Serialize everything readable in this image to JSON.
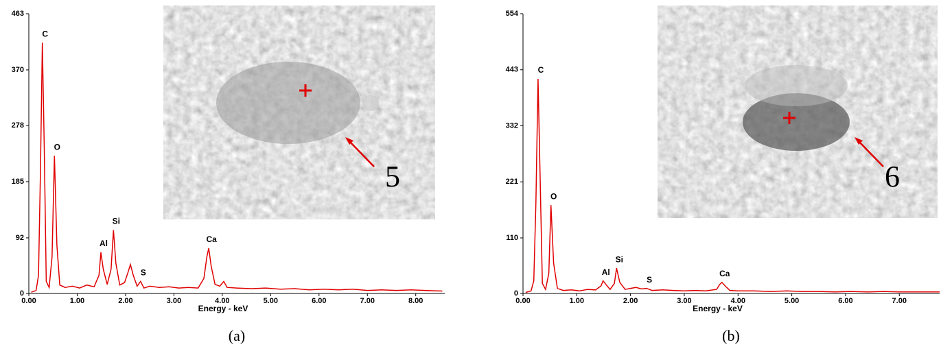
{
  "chart_data": [
    {
      "type": "line",
      "color": "#e00000",
      "x": [
        0.05,
        0.15,
        0.2,
        0.24,
        0.28,
        0.32,
        0.36,
        0.42,
        0.48,
        0.53,
        0.58,
        0.64,
        0.75,
        0.9,
        1.05,
        1.2,
        1.35,
        1.45,
        1.49,
        1.54,
        1.62,
        1.7,
        1.75,
        1.8,
        1.88,
        1.98,
        2.05,
        2.1,
        2.16,
        2.24,
        2.31,
        2.38,
        2.5,
        2.7,
        2.9,
        3.1,
        3.3,
        3.5,
        3.62,
        3.68,
        3.72,
        3.77,
        3.85,
        3.95,
        4.03,
        4.1,
        4.3,
        4.6,
        4.9,
        5.2,
        5.5,
        5.8,
        6.1,
        6.4,
        6.7,
        7.0,
        7.3,
        7.6,
        7.9,
        8.2,
        8.55
      ],
      "values": [
        2,
        5,
        30,
        200,
        415,
        240,
        20,
        10,
        60,
        228,
        80,
        14,
        10,
        12,
        9,
        14,
        11,
        30,
        68,
        40,
        15,
        40,
        105,
        50,
        14,
        18,
        35,
        48,
        30,
        12,
        20,
        9,
        12,
        10,
        11,
        9,
        10,
        9,
        25,
        60,
        75,
        45,
        15,
        12,
        20,
        10,
        9,
        8,
        9,
        7,
        8,
        6,
        7,
        6,
        7,
        5,
        6,
        5,
        6,
        5,
        4
      ],
      "xlim": [
        0,
        8.6
      ],
      "ylim": [
        0,
        463
      ],
      "xticks": [
        {
          "value": 0,
          "label": "0.00"
        },
        {
          "value": 1,
          "label": "1.00"
        },
        {
          "value": 2,
          "label": "2.00"
        },
        {
          "value": 3,
          "label": "3.00"
        },
        {
          "value": 4,
          "label": "4.00"
        },
        {
          "value": 5,
          "label": "5.00"
        },
        {
          "value": 6,
          "label": "6.00"
        },
        {
          "value": 7,
          "label": "7.00"
        },
        {
          "value": 8,
          "label": "8.00"
        }
      ],
      "yticks": [
        0,
        92,
        185,
        278,
        370,
        463
      ],
      "x_label": "Energy - keV",
      "annotations": [
        {
          "text": "C",
          "x": 0.28
        },
        {
          "text": "O",
          "x": 0.53
        },
        {
          "text": "Al",
          "x": 1.49
        },
        {
          "text": "Si",
          "x": 1.75
        },
        {
          "text": "S",
          "x": 2.31
        },
        {
          "text": "Ca",
          "x": 3.72
        }
      ],
      "inset_label": "5",
      "caption": "(a)"
    },
    {
      "type": "line",
      "color": "#e00000",
      "x": [
        0.05,
        0.15,
        0.2,
        0.24,
        0.28,
        0.32,
        0.36,
        0.42,
        0.48,
        0.52,
        0.57,
        0.64,
        0.75,
        0.9,
        1.05,
        1.2,
        1.35,
        1.45,
        1.49,
        1.54,
        1.62,
        1.7,
        1.74,
        1.8,
        1.9,
        2.0,
        2.1,
        2.2,
        2.3,
        2.4,
        2.6,
        2.8,
        3.0,
        3.2,
        3.4,
        3.6,
        3.66,
        3.7,
        3.76,
        3.85,
        4.0,
        4.3,
        4.6,
        4.9,
        5.2,
        5.5,
        5.8,
        6.1,
        6.4,
        6.7,
        7.0,
        7.3,
        7.75
      ],
      "values": [
        2,
        5,
        25,
        180,
        425,
        220,
        20,
        8,
        40,
        175,
        60,
        10,
        6,
        7,
        5,
        8,
        7,
        15,
        25,
        18,
        8,
        20,
        50,
        22,
        8,
        10,
        12,
        9,
        10,
        6,
        7,
        6,
        5,
        6,
        5,
        8,
        18,
        22,
        15,
        6,
        5,
        5,
        4,
        5,
        4,
        4,
        3,
        4,
        3,
        4,
        3,
        3,
        3
      ],
      "xlim": [
        0,
        7.75
      ],
      "ylim": [
        0,
        554
      ],
      "xticks": [
        {
          "value": 0,
          "label": "0.00"
        },
        {
          "value": 1,
          "label": "1.00"
        },
        {
          "value": 2,
          "label": "2.00"
        },
        {
          "value": 3,
          "label": "3.00"
        },
        {
          "value": 4,
          "label": "4.00"
        },
        {
          "value": 5,
          "label": "5.00"
        },
        {
          "value": 6,
          "label": "6.00"
        },
        {
          "value": 7,
          "label": "7.00"
        }
      ],
      "yticks": [
        0,
        110,
        221,
        332,
        443,
        554
      ],
      "x_label": "Energy - keV",
      "annotations": [
        {
          "text": "C",
          "x": 0.28
        },
        {
          "text": "O",
          "x": 0.52
        },
        {
          "text": "Al",
          "x": 1.49
        },
        {
          "text": "Si",
          "x": 1.74
        },
        {
          "text": "S",
          "x": 2.3
        },
        {
          "text": "Ca",
          "x": 3.7
        }
      ],
      "inset_label": "6",
      "caption": "(b)"
    }
  ]
}
